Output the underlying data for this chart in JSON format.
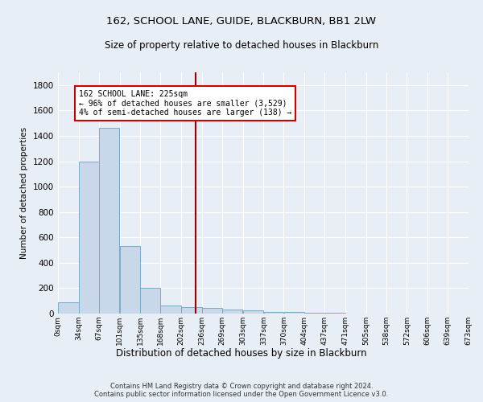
{
  "title": "162, SCHOOL LANE, GUIDE, BLACKBURN, BB1 2LW",
  "subtitle": "Size of property relative to detached houses in Blackburn",
  "xlabel": "Distribution of detached houses by size in Blackburn",
  "ylabel": "Number of detached properties",
  "bar_color": "#c8d8ea",
  "bar_edge_color": "#7aaac8",
  "background_color": "#e8eef5",
  "fig_background_color": "#e8eef5",
  "grid_color": "#ffffff",
  "vline_x": 225,
  "vline_color": "#990000",
  "annotation_text": "162 SCHOOL LANE: 225sqm\n← 96% of detached houses are smaller (3,529)\n4% of semi-detached houses are larger (138) →",
  "annotation_box_color": "#ffffff",
  "annotation_box_edge": "#cc0000",
  "footer_text": "Contains HM Land Registry data © Crown copyright and database right 2024.\nContains public sector information licensed under the Open Government Licence v3.0.",
  "bin_edges": [
    0,
    34,
    67,
    101,
    135,
    168,
    202,
    236,
    269,
    303,
    337,
    370,
    404,
    437,
    471,
    505,
    538,
    572,
    606,
    639,
    673
  ],
  "bin_labels": [
    "0sqm",
    "34sqm",
    "67sqm",
    "101sqm",
    "135sqm",
    "168sqm",
    "202sqm",
    "236sqm",
    "269sqm",
    "303sqm",
    "337sqm",
    "370sqm",
    "404sqm",
    "437sqm",
    "471sqm",
    "505sqm",
    "538sqm",
    "572sqm",
    "606sqm",
    "639sqm",
    "673sqm"
  ],
  "bar_heights": [
    90,
    1200,
    1460,
    535,
    200,
    65,
    50,
    42,
    30,
    25,
    15,
    10,
    8,
    5,
    3,
    2,
    0,
    0,
    0,
    0
  ],
  "ylim": [
    0,
    1900
  ],
  "yticks": [
    0,
    200,
    400,
    600,
    800,
    1000,
    1200,
    1400,
    1600,
    1800
  ]
}
